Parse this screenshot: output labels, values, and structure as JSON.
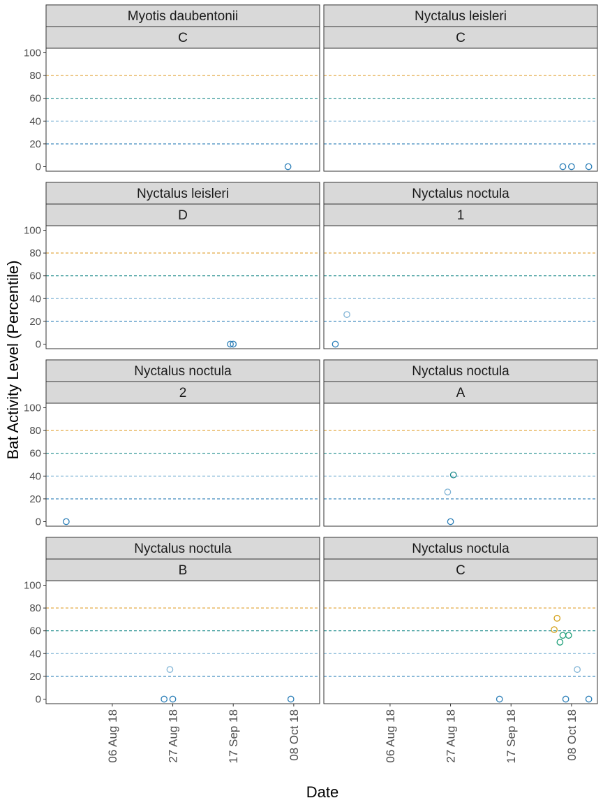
{
  "chart_data": {
    "type": "scatter",
    "xlabel": "Date",
    "ylabel": "Bat Activity Level (Percentile)",
    "ylim": [
      -4,
      104
    ],
    "xlim": [
      "2018-07-14",
      "2018-10-17"
    ],
    "y_ticks": [
      0,
      20,
      40,
      60,
      80,
      100
    ],
    "x_ticks": [
      {
        "date": "2018-08-06",
        "label": "06 Aug 18"
      },
      {
        "date": "2018-08-27",
        "label": "27 Aug 18"
      },
      {
        "date": "2018-09-17",
        "label": "17 Sep 18"
      },
      {
        "date": "2018-10-08",
        "label": "08 Oct 18"
      }
    ],
    "reference_lines": [
      {
        "y": 20,
        "color": "#2c7fb8"
      },
      {
        "y": 40,
        "color": "#7fb3d5"
      },
      {
        "y": 60,
        "color": "#1b8a8a"
      },
      {
        "y": 80,
        "color": "#e0a030"
      }
    ],
    "level_colors": {
      "low": "#7fb3d5",
      "low_moderate": "#2c7fb8",
      "moderate": "#1b8a8a",
      "moderate_high": "#1b9e77",
      "high": "#d4a017"
    },
    "grid": false,
    "legend": "none",
    "panels": [
      {
        "species": "Myotis daubentonii",
        "site": "C",
        "points": [
          {
            "x": "2018-10-06",
            "y": 0,
            "level": "low_moderate"
          }
        ]
      },
      {
        "species": "Nyctalus leisleri",
        "site": "C",
        "points": [
          {
            "x": "2018-10-05",
            "y": 0,
            "level": "low_moderate"
          },
          {
            "x": "2018-10-08",
            "y": 0,
            "level": "low_moderate"
          },
          {
            "x": "2018-10-14",
            "y": 0,
            "level": "low_moderate"
          }
        ]
      },
      {
        "species": "Nyctalus leisleri",
        "site": "D",
        "points": [
          {
            "x": "2018-09-16",
            "y": 0,
            "level": "low_moderate"
          },
          {
            "x": "2018-09-17",
            "y": 0,
            "level": "low_moderate"
          }
        ]
      },
      {
        "species": "Nyctalus noctula",
        "site": "1",
        "points": [
          {
            "x": "2018-07-18",
            "y": 0,
            "level": "low_moderate"
          },
          {
            "x": "2018-07-22",
            "y": 26,
            "level": "low"
          }
        ]
      },
      {
        "species": "Nyctalus noctula",
        "site": "2",
        "points": [
          {
            "x": "2018-07-21",
            "y": 0,
            "level": "low_moderate"
          }
        ]
      },
      {
        "species": "Nyctalus noctula",
        "site": "A",
        "points": [
          {
            "x": "2018-08-26",
            "y": 26,
            "level": "low"
          },
          {
            "x": "2018-08-27",
            "y": 0,
            "level": "low_moderate"
          },
          {
            "x": "2018-08-28",
            "y": 41,
            "level": "moderate"
          }
        ]
      },
      {
        "species": "Nyctalus noctula",
        "site": "B",
        "points": [
          {
            "x": "2018-08-24",
            "y": 0,
            "level": "low_moderate"
          },
          {
            "x": "2018-08-26",
            "y": 26,
            "level": "low"
          },
          {
            "x": "2018-08-27",
            "y": 0,
            "level": "low_moderate"
          },
          {
            "x": "2018-10-07",
            "y": 0,
            "level": "low_moderate"
          }
        ]
      },
      {
        "species": "Nyctalus noctula",
        "site": "C",
        "points": [
          {
            "x": "2018-09-13",
            "y": 0,
            "level": "low_moderate"
          },
          {
            "x": "2018-10-02",
            "y": 61,
            "level": "high"
          },
          {
            "x": "2018-10-03",
            "y": 71,
            "level": "high"
          },
          {
            "x": "2018-10-04",
            "y": 50,
            "level": "moderate_high"
          },
          {
            "x": "2018-10-05",
            "y": 56,
            "level": "moderate_high"
          },
          {
            "x": "2018-10-07",
            "y": 56,
            "level": "moderate_high"
          },
          {
            "x": "2018-10-06",
            "y": 0,
            "level": "low_moderate"
          },
          {
            "x": "2018-10-10",
            "y": 26,
            "level": "low"
          },
          {
            "x": "2018-10-14",
            "y": 0,
            "level": "low_moderate"
          }
        ]
      }
    ]
  }
}
